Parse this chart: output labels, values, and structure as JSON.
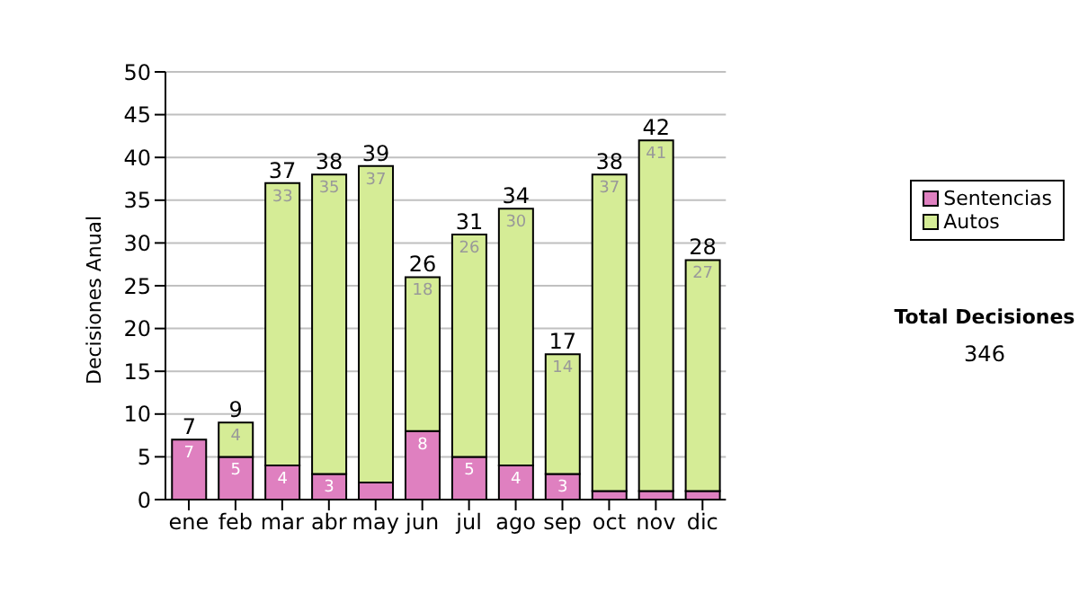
{
  "chart_data": {
    "type": "bar",
    "stacked": true,
    "ylabel": "Decisiones Anual",
    "categories": [
      "ene",
      "feb",
      "mar",
      "abr",
      "may",
      "jun",
      "jul",
      "ago",
      "sep",
      "oct",
      "nov",
      "dic"
    ],
    "series": [
      {
        "name": "Sentencias",
        "color": "#df80c0",
        "values": [
          7,
          5,
          4,
          3,
          2,
          8,
          5,
          4,
          3,
          1,
          1,
          1
        ],
        "value_labels": [
          "7",
          "5",
          "4",
          "3",
          null,
          "8",
          "5",
          "4",
          "3",
          null,
          null,
          null
        ]
      },
      {
        "name": "Autos",
        "color": "#d5ec96",
        "values": [
          0,
          4,
          33,
          35,
          37,
          18,
          26,
          30,
          14,
          37,
          41,
          27
        ],
        "value_labels": [
          null,
          "4",
          "33",
          "35",
          "37",
          "18",
          "26",
          "30",
          "14",
          "37",
          "41",
          "27"
        ]
      }
    ],
    "totals": [
      "7",
      "9",
      "37",
      "38",
      "39",
      "26",
      "31",
      "34",
      "17",
      "38",
      "42",
      "28"
    ],
    "ylim": [
      0,
      50
    ],
    "yticks": [
      0,
      5,
      10,
      15,
      20,
      25,
      30,
      35,
      40,
      45,
      50
    ],
    "grid": "y",
    "legend": "right",
    "annotations": [
      "Total Decisiones",
      "346"
    ]
  }
}
